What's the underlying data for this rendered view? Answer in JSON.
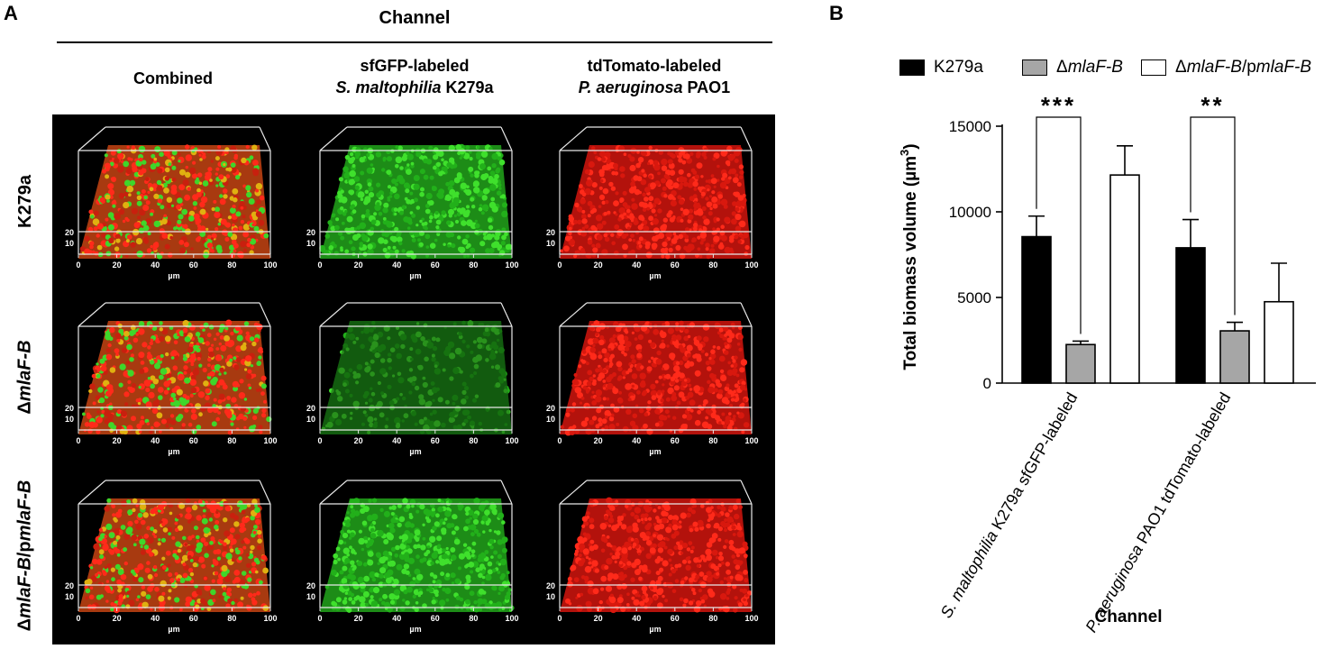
{
  "panel_a": {
    "letter": "A",
    "header": "Channel",
    "columns": [
      {
        "line1": "Combined",
        "line2": ""
      },
      {
        "line1": "sfGFP-labeled",
        "line2_italic": "S. maltophilia",
        "line2_rest": " K279a"
      },
      {
        "line1": "tdTomato-labeled",
        "line2_italic": "P. aeruginosa",
        "line2_rest": " PAO1"
      }
    ],
    "rows": [
      {
        "pre": "",
        "italic": "K279a",
        "post": "",
        "italic2": "",
        "kind": "plain"
      },
      {
        "pre": "Δ",
        "italic": "mlaF-B",
        "post": "",
        "italic2": "",
        "kind": "mut"
      },
      {
        "pre": "Δ",
        "italic": "mlaF-B",
        "post": "/p",
        "italic2": "mlaF-B",
        "kind": "comp"
      }
    ],
    "axis": {
      "x_ticks": [
        "0",
        "20",
        "40",
        "60",
        "80",
        "100"
      ],
      "x_unit": "µm",
      "z_ticks": [
        "20",
        "10"
      ]
    }
  },
  "panel_b": {
    "letter": "B",
    "legend": [
      {
        "label_pre": "",
        "label_italic": "",
        "label_plain": "K279a",
        "label_post": "",
        "label_italic2": "",
        "color": "#000000"
      },
      {
        "label_pre": "Δ",
        "label_italic": "mlaF-B",
        "label_plain": "",
        "label_post": "",
        "label_italic2": "",
        "color": "#a6a6a6"
      },
      {
        "label_pre": "Δ",
        "label_italic": "mlaF-B",
        "label_plain": "",
        "label_post": "/p",
        "label_italic2": "mlaF-B",
        "color": "#ffffff"
      }
    ]
  },
  "chart_data": {
    "type": "bar",
    "ylabel": "Total biomass volume (µm³)",
    "ylabel_main": "Total biomass volume (µm",
    "ylabel_sup": "3",
    "ylabel_end": ")",
    "xlabel": "Channel",
    "ylim": [
      0,
      15000
    ],
    "yticks": [
      0,
      5000,
      10000,
      15000
    ],
    "categories": [
      {
        "italic": "S. maltophilia",
        "rest": " K279a sfGFP-labeled"
      },
      {
        "italic": "P. aeruginosa",
        "rest": " PAO1 tdTomato-labeled"
      }
    ],
    "series": [
      {
        "name": "K279a",
        "color": "#000000",
        "values": [
          8550,
          7900
        ],
        "errors": [
          1200,
          1650
        ]
      },
      {
        "name": "ΔmlaF-B",
        "color": "#a6a6a6",
        "values": [
          2250,
          3050
        ],
        "errors": [
          200,
          500
        ]
      },
      {
        "name": "ΔmlaF-B/pmlaF-B",
        "color": "#ffffff",
        "values": [
          12150,
          4750
        ],
        "errors": [
          1700,
          2250
        ]
      }
    ],
    "significance": [
      "***",
      "**"
    ]
  }
}
